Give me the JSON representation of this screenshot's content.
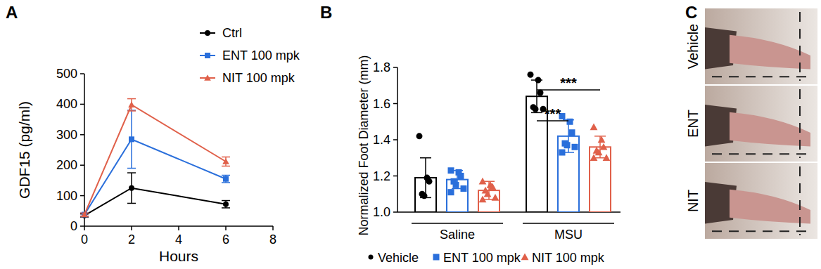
{
  "chart_data": [
    {
      "type": "line",
      "title": "A",
      "x_label": "Hours",
      "y_label": "GDF15 (pg/ml)",
      "x": [
        0,
        2,
        6
      ],
      "xlim": [
        0,
        8
      ],
      "xticks": [
        0,
        2,
        4,
        6,
        8
      ],
      "ylim": [
        0,
        500
      ],
      "yticks": [
        0,
        100,
        200,
        300,
        400,
        500
      ],
      "legend": "upper right",
      "series": [
        {
          "name": "Ctrl",
          "color": "#000000",
          "marker": "circle",
          "values": [
            35,
            125,
            72
          ],
          "errors": [
            5,
            50,
            12
          ]
        },
        {
          "name": "ENT 100 mpk",
          "color": "#2a6fdb",
          "marker": "square",
          "values": [
            38,
            285,
            155
          ],
          "errors": [
            5,
            95,
            12
          ]
        },
        {
          "name": "NIT 100 mpk",
          "color": "#e0604a",
          "marker": "triangle",
          "values": [
            38,
            398,
            212
          ],
          "errors": [
            5,
            20,
            15
          ]
        }
      ]
    },
    {
      "type": "bar",
      "title": "B",
      "y_label": "Normalized Foot Diameter (mm)",
      "categories": [
        "Saline",
        "MSU"
      ],
      "ylim": [
        1.0,
        1.8
      ],
      "yticks": [
        {
          "value": 1.0,
          "label": "1.0"
        },
        1.2,
        1.4,
        1.6,
        1.8
      ],
      "legend": "bottom",
      "annotations": [
        "***",
        "***"
      ],
      "series": [
        {
          "name": "Vehicle",
          "color": "#000000",
          "marker": "circle",
          "values": [
            1.19,
            1.64
          ],
          "errors": [
            0.11,
            0.09
          ],
          "points": [
            [
              1.42,
              1.19,
              1.17,
              1.1,
              1.09
            ],
            [
              1.76,
              1.73,
              1.66,
              1.58,
              1.57,
              1.57
            ]
          ]
        },
        {
          "name": "ENT 100 mpk",
          "color": "#2a6fdb",
          "marker": "square",
          "values": [
            1.18,
            1.42
          ],
          "errors": [
            0.05,
            0.09
          ],
          "points": [
            [
              1.23,
              1.22,
              1.2,
              1.17,
              1.15,
              1.13,
              1.11
            ],
            [
              1.53,
              1.5,
              1.44,
              1.38,
              1.37,
              1.36,
              1.33
            ]
          ]
        },
        {
          "name": "NIT 100 mpk",
          "color": "#e0604a",
          "marker": "triangle",
          "values": [
            1.12,
            1.36
          ],
          "errors": [
            0.05,
            0.06
          ],
          "points": [
            [
              1.17,
              1.15,
              1.14,
              1.12,
              1.1,
              1.08,
              1.07
            ],
            [
              1.47,
              1.4,
              1.36,
              1.34,
              1.33,
              1.3,
              1.3
            ]
          ]
        }
      ]
    }
  ],
  "photos": {
    "title": "C",
    "labels": [
      "Vehicle",
      "ENT",
      "NIT"
    ]
  }
}
